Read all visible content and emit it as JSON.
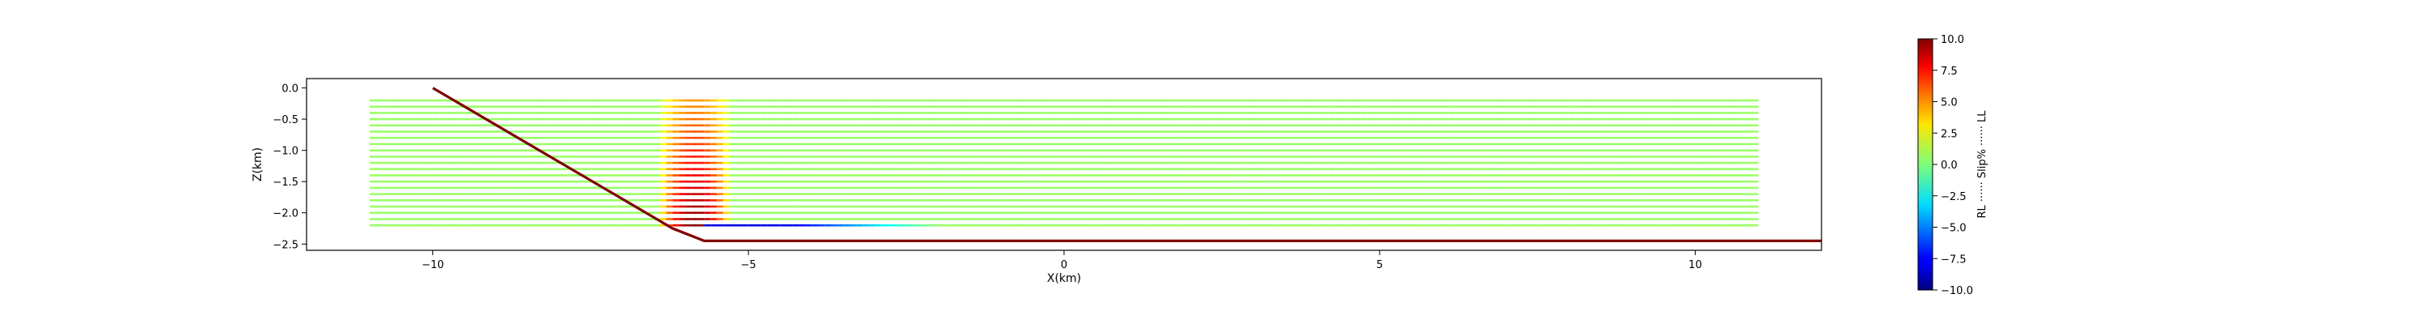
{
  "chart_data": {
    "type": "scatter",
    "title": "",
    "xlabel": "X(km)",
    "ylabel": "Z(km)",
    "xlim": [
      -12.0,
      12.0
    ],
    "ylim": [
      -2.6,
      0.15
    ],
    "xticks": [
      -10,
      -5,
      0,
      5,
      10
    ],
    "xtick_labels": [
      "−10",
      "−5",
      "0",
      "5",
      "10"
    ],
    "yticks": [
      0.0,
      -0.5,
      -1.0,
      -1.5,
      -2.0,
      -2.5
    ],
    "ytick_labels": [
      "0.0",
      "−0.5",
      "−1.0",
      "−1.5",
      "−2.0",
      "−2.5"
    ],
    "grid": false,
    "fault_trace": {
      "color": "#7f0000",
      "points": [
        [
          -10.0,
          0.0
        ],
        [
          -6.2,
          -2.25
        ],
        [
          -5.7,
          -2.45
        ],
        [
          12.0,
          -2.45
        ]
      ]
    },
    "slip_layers": {
      "x_start": -11.0,
      "x_end": 11.0,
      "z_top": -0.2,
      "z_bottom": -2.2,
      "z_step": 0.1,
      "base_slip_percent": 0.5,
      "hot_zone": {
        "x_center": -5.85,
        "half_width": 0.6,
        "peak_slip_percent": 10.0
      },
      "negative_band": {
        "z": -2.2,
        "x_start": -5.7,
        "x_end": -2.0,
        "slip_percent": -8.0
      }
    },
    "colorbar": {
      "label": "RL ······ Slip% ······ LL",
      "min": -10.0,
      "max": 10.0,
      "colormap": "jet",
      "ticks": [
        10.0,
        7.5,
        5.0,
        2.5,
        0.0,
        -2.5,
        -5.0,
        -7.5,
        -10.0
      ],
      "tick_labels": [
        "10.0",
        "7.5",
        "5.0",
        "2.5",
        "0.0",
        "−2.5",
        "−5.0",
        "−7.5",
        "−10.0"
      ]
    }
  }
}
